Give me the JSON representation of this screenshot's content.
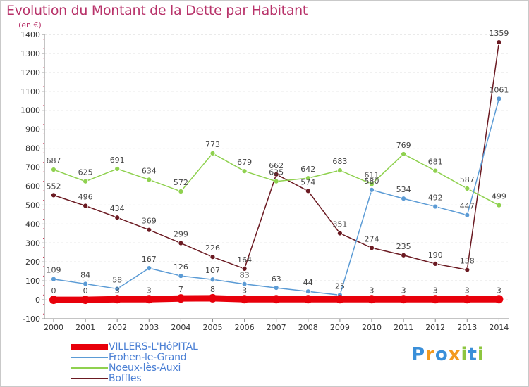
{
  "title": "Evolution du Montant de la Dette par Habitant",
  "subtitle": "(en €)",
  "logo": {
    "text": "Proxiti",
    "letters": [
      "P",
      "r",
      "o",
      "x",
      "i",
      "t",
      "i"
    ],
    "colors": [
      "#3a8fd9",
      "#f39a1f",
      "#3a8fd9",
      "#f39a1f",
      "#8dc63f",
      "#3a8fd9",
      "#8dc63f"
    ]
  },
  "chart_data": {
    "type": "line",
    "title": "Evolution du Montant de la Dette par Habitant",
    "ylabel": "(en €)",
    "xlabel": "",
    "x": [
      2000,
      2001,
      2002,
      2003,
      2004,
      2005,
      2006,
      2007,
      2008,
      2009,
      2010,
      2011,
      2012,
      2013,
      2014
    ],
    "ylim": [
      -100,
      1400
    ],
    "yticks": [
      -100,
      0,
      100,
      200,
      300,
      400,
      500,
      600,
      700,
      800,
      900,
      1000,
      1100,
      1200,
      1300,
      1400
    ],
    "grid": "horizontal dashed",
    "legend_position": "bottom-left",
    "series": [
      {
        "name": "VILLERS-L'HôPITAL",
        "color": "#e8000b",
        "values": [
          0,
          0,
          3,
          3,
          7,
          8,
          3,
          3,
          3,
          3,
          3,
          3,
          3,
          3,
          3
        ],
        "labels": [
          "0",
          "0",
          "3",
          "3",
          "7",
          "8",
          "3",
          "",
          "",
          "",
          "3",
          "3",
          "3",
          "3",
          "3"
        ]
      },
      {
        "name": "Frohen-le-Grand",
        "color": "#5b9bd5",
        "values": [
          109,
          84,
          58,
          167,
          126,
          107,
          83,
          63,
          44,
          25,
          580,
          534,
          492,
          447,
          1061
        ],
        "labels": [
          "109",
          "84",
          "58",
          "167",
          "126",
          "107",
          "83",
          "63",
          "44",
          "25",
          "580",
          "534",
          "492",
          "447",
          "1061"
        ]
      },
      {
        "name": "Noeux-lès-Auxi",
        "color": "#8fd14f",
        "values": [
          687,
          625,
          691,
          634,
          572,
          773,
          679,
          625,
          642,
          683,
          611,
          769,
          681,
          587,
          499
        ],
        "labels": [
          "687",
          "625",
          "691",
          "634",
          "572",
          "773",
          "679",
          "625",
          "642",
          "683",
          "611",
          "769",
          "681",
          "587",
          "499"
        ]
      },
      {
        "name": "Boffles",
        "color": "#6b1a22",
        "values": [
          552,
          496,
          434,
          369,
          299,
          226,
          164,
          662,
          574,
          351,
          274,
          235,
          190,
          158,
          1359
        ],
        "labels": [
          "552",
          "496",
          "434",
          "369",
          "299",
          "226",
          "164",
          "662",
          "574",
          "351",
          "274",
          "235",
          "190",
          "158",
          "1359"
        ]
      }
    ]
  }
}
